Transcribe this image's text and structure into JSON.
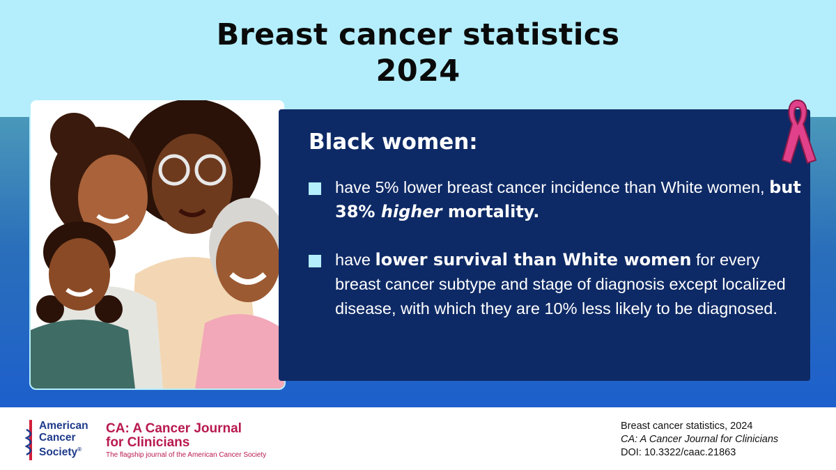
{
  "title": {
    "line1": "Breast cancer statistics",
    "line2": "2024"
  },
  "panel": {
    "heading": "Black women:",
    "bullets": [
      {
        "pre": "have 5% lower breast cancer incidence than White women, ",
        "bold1": "but 38% ",
        "bold_italic": "higher",
        "bold2": " mortality."
      },
      {
        "pre": "have ",
        "bold": "lower survival than White women",
        "post": " for every breast cancer subtype and stage of diagnosis except localized disease, with which they are 10% less likely to be diagnosed."
      }
    ]
  },
  "footer": {
    "acs_logo": [
      "American",
      "Cancer",
      "Society"
    ],
    "acs_mark": "®",
    "journal_title_1": "CA: A Cancer Journal",
    "journal_title_2": "for Clinicians",
    "journal_tagline": "The flagship journal of the American Cancer Society",
    "citation": {
      "line1": "Breast cancer statistics, 2024",
      "journal": "CA: A Cancer Journal for Clinicians",
      "doi": "DOI: 10.3322/caac.21863"
    }
  },
  "colors": {
    "top_band": "#b4eefc",
    "panel": "#0e2a66",
    "bullet": "#b4eefc",
    "ribbon": "#e0418a",
    "acs_blue": "#1e3a8a",
    "journal": "#b8194f"
  },
  "icons": {
    "ribbon": "pink-ribbon-icon",
    "acs": "acs-caduceus-icon"
  }
}
